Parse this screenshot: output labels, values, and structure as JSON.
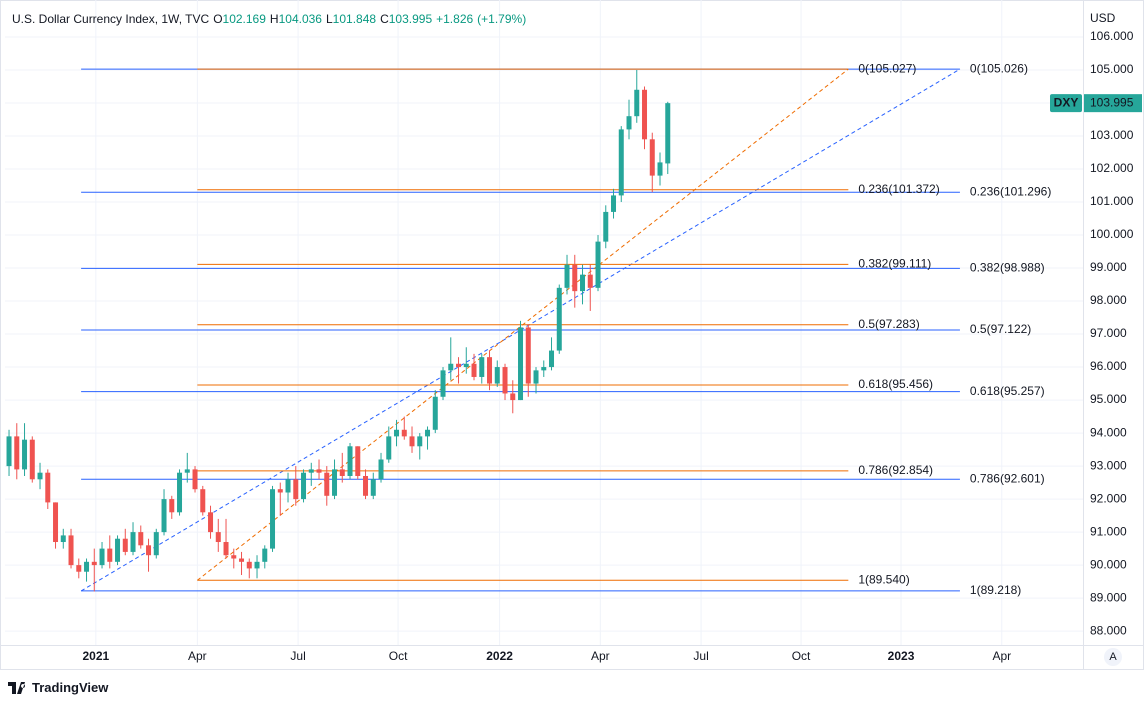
{
  "header": {
    "title": "U.S. Dollar Currency Index, 1W, TVC",
    "ohlc_labels": [
      "O",
      "H",
      "L",
      "C"
    ],
    "change": {
      "value": 1.826,
      "label": "+1.826"
    },
    "change_pct": {
      "value": 1.79,
      "label": "(+1.79%)"
    }
  },
  "footer": "TradingView",
  "currency": "USD",
  "auto_button": "A",
  "chart_data": {
    "type": "candlestick",
    "up_color": "#26a69a",
    "down_color": "#ef5350",
    "grid": true,
    "ylim": [
      87.58,
      107.12
    ],
    "yticks": [
      {
        "value": 88,
        "label": "88.000"
      },
      {
        "value": 89,
        "label": "89.000"
      },
      {
        "value": 90,
        "label": "90.000"
      },
      {
        "value": 91,
        "label": "91.000"
      },
      {
        "value": 92,
        "label": "92.000"
      },
      {
        "value": 93,
        "label": "93.000"
      },
      {
        "value": 94,
        "label": "94.000"
      },
      {
        "value": 95,
        "label": "95.000"
      },
      {
        "value": 96,
        "label": "96.000"
      },
      {
        "value": 97,
        "label": "97.000"
      },
      {
        "value": 98,
        "label": "98.000"
      },
      {
        "value": 99,
        "label": "99.000"
      },
      {
        "value": 100,
        "label": "100.000"
      },
      {
        "value": 101,
        "label": "101.000"
      },
      {
        "value": 102,
        "label": "102.000"
      },
      {
        "value": 103,
        "label": "103.000"
      },
      {
        "value": 104,
        "label": "104.000"
      },
      {
        "value": 105,
        "label": "105.000"
      },
      {
        "value": 106,
        "label": "106.000"
      }
    ],
    "xlim": [
      -0.52,
      138.58
    ],
    "xticks": [
      {
        "value": 11.2,
        "label": "2021"
      },
      {
        "value": 24.3,
        "label": "Apr"
      },
      {
        "value": 37.3,
        "label": "Jul"
      },
      {
        "value": 50.2,
        "label": "Oct"
      },
      {
        "value": 63.3,
        "label": "2022"
      },
      {
        "value": 76.3,
        "label": "Apr"
      },
      {
        "value": 89.3,
        "label": "Jul"
      },
      {
        "value": 102.2,
        "label": "Oct"
      },
      {
        "value": 115.1,
        "label": "2023"
      },
      {
        "value": 128.1,
        "label": "Apr"
      }
    ],
    "series": [
      {
        "name": "DXY",
        "open": [
          93.0,
          93.9,
          92.9,
          93.8,
          92.6,
          92.8,
          91.9,
          90.7,
          90.9,
          90.0,
          89.8,
          90.1,
          90.0,
          90.5,
          90.1,
          90.8,
          90.4,
          91.0,
          90.6,
          90.3,
          91.0,
          92.0,
          91.6,
          92.8,
          92.9,
          92.3,
          91.6,
          91.0,
          90.7,
          90.3,
          90.2,
          90.1,
          89.9,
          90.1,
          90.5,
          92.3,
          92.2,
          92.6,
          92.0,
          92.8,
          92.9,
          92.8,
          92.1,
          92.9,
          92.7,
          93.6,
          92.7,
          92.1,
          92.6,
          93.2,
          93.9,
          94.1,
          93.9,
          93.6,
          93.9,
          94.1,
          95.1,
          95.9,
          96.1,
          96.0,
          96.1,
          95.7,
          96.3,
          95.5,
          96.0,
          95.2,
          95.0,
          97.2,
          95.5,
          95.9,
          96.0,
          96.5,
          98.4,
          99.1,
          98.3,
          98.8,
          98.4,
          99.8,
          100.7,
          101.2,
          103.2,
          103.6,
          104.4,
          102.9,
          101.8,
          102.169
        ],
        "high": [
          94.1,
          94.3,
          94.3,
          93.9,
          93.1,
          92.9,
          91.9,
          91.1,
          91.1,
          90.2,
          90.2,
          90.5,
          90.7,
          90.9,
          90.9,
          91.1,
          91.3,
          91.2,
          90.8,
          91.1,
          92.3,
          92.1,
          92.9,
          93.4,
          93.0,
          92.4,
          91.8,
          91.4,
          91.4,
          90.5,
          90.4,
          90.2,
          90.3,
          90.6,
          92.4,
          92.5,
          92.8,
          93.0,
          92.9,
          93.1,
          93.2,
          93.0,
          93.2,
          93.4,
          93.7,
          93.6,
          92.9,
          92.8,
          93.4,
          94.2,
          94.4,
          94.5,
          94.2,
          94.0,
          94.2,
          95.3,
          96.0,
          96.9,
          96.3,
          96.6,
          96.4,
          96.4,
          96.5,
          96.2,
          96.1,
          95.6,
          97.4,
          97.3,
          96.0,
          96.2,
          96.9,
          98.5,
          99.4,
          99.4,
          99.1,
          99.1,
          100.0,
          100.9,
          101.4,
          103.3,
          104.1,
          105.0,
          104.5,
          103.1,
          102.5,
          104.036
        ],
        "low": [
          92.7,
          92.6,
          92.7,
          92.5,
          92.3,
          91.7,
          90.5,
          90.5,
          89.9,
          89.6,
          89.5,
          89.2,
          89.9,
          89.9,
          90.0,
          90.3,
          90.3,
          90.5,
          89.8,
          90.2,
          90.9,
          91.4,
          91.5,
          92.5,
          92.2,
          91.5,
          90.8,
          90.4,
          90.2,
          89.9,
          89.7,
          89.6,
          89.6,
          89.9,
          90.4,
          91.5,
          91.9,
          91.8,
          91.9,
          92.4,
          92.6,
          91.8,
          92.0,
          92.5,
          92.6,
          92.6,
          92.0,
          92.0,
          92.5,
          93.1,
          93.6,
          93.8,
          93.4,
          93.2,
          93.5,
          94.0,
          95.0,
          95.6,
          95.5,
          95.8,
          95.6,
          95.5,
          95.3,
          95.4,
          95.0,
          94.6,
          95.0,
          95.1,
          95.2,
          95.7,
          95.9,
          96.4,
          98.2,
          97.8,
          97.9,
          97.7,
          98.3,
          99.6,
          100.5,
          101.0,
          102.9,
          103.4,
          102.6,
          101.3,
          101.5,
          101.848
        ],
        "close": [
          93.9,
          92.9,
          93.8,
          92.6,
          92.8,
          91.9,
          90.7,
          90.9,
          90.0,
          89.8,
          90.1,
          90.0,
          90.5,
          90.1,
          90.8,
          90.4,
          91.0,
          90.6,
          90.3,
          91.0,
          92.0,
          91.6,
          92.8,
          92.9,
          92.3,
          91.6,
          91.0,
          90.7,
          90.3,
          90.2,
          90.1,
          89.9,
          90.1,
          90.5,
          92.3,
          92.2,
          92.6,
          92.0,
          92.8,
          92.9,
          92.8,
          92.1,
          92.9,
          92.7,
          93.6,
          92.7,
          92.1,
          92.6,
          93.2,
          93.9,
          94.1,
          93.9,
          93.6,
          93.9,
          94.1,
          95.1,
          95.9,
          96.1,
          96.0,
          96.1,
          95.7,
          96.3,
          95.5,
          96.0,
          95.2,
          95.0,
          97.2,
          95.5,
          95.9,
          96.0,
          96.5,
          98.4,
          99.1,
          98.3,
          98.8,
          98.4,
          99.8,
          100.7,
          101.2,
          103.2,
          103.6,
          104.4,
          102.9,
          101.8,
          102.2,
          103.995
        ]
      }
    ],
    "fib_retracements": [
      {
        "color": "#ef6c00",
        "x_start": 24.3,
        "x_end": 108.3,
        "levels": [
          {
            "price": 105.027,
            "label": "0(105.027)"
          },
          {
            "price": 101.372,
            "label": "0.236(101.372)"
          },
          {
            "price": 99.111,
            "label": "0.382(99.111)"
          },
          {
            "price": 97.283,
            "label": "0.5(97.283)"
          },
          {
            "price": 95.456,
            "label": "0.618(95.456)"
          },
          {
            "price": 92.854,
            "label": "0.786(92.854)"
          },
          {
            "price": 89.54,
            "label": "1(89.540)"
          }
        ]
      },
      {
        "color": "#2962ff",
        "x_start": 9.3,
        "x_end": 122.7,
        "levels": [
          {
            "price": 105.026,
            "label": "0(105.026)"
          },
          {
            "price": 101.296,
            "label": "0.236(101.296)"
          },
          {
            "price": 98.988,
            "label": "0.382(98.988)"
          },
          {
            "price": 97.122,
            "label": "0.5(97.122)"
          },
          {
            "price": 95.257,
            "label": "0.618(95.257)"
          },
          {
            "price": 92.601,
            "label": "0.786(92.601)"
          },
          {
            "price": 89.218,
            "label": "1(89.218)"
          }
        ]
      }
    ]
  }
}
